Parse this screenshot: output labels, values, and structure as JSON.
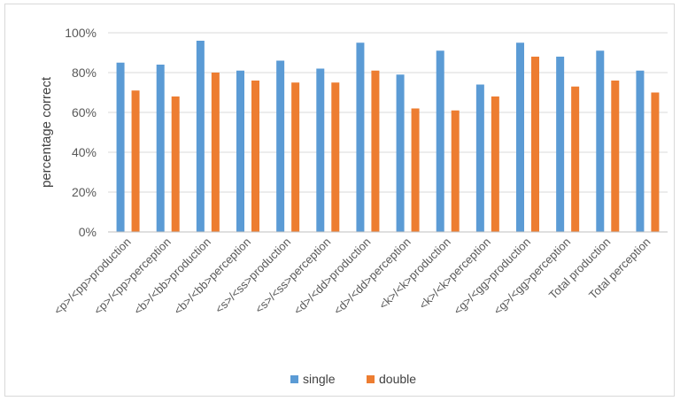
{
  "chart_data": {
    "type": "bar",
    "ylabel": "percentage correct",
    "xlabel": "",
    "ylim": [
      0,
      100
    ],
    "yticks": [
      "0%",
      "20%",
      "40%",
      "60%",
      "80%",
      "100%"
    ],
    "grid": true,
    "legend_position": "bottom",
    "categories": [
      "<p>/<pp>production",
      "<p>/<pp>perception",
      "<b>/<bb>production",
      "<b>/<bb>perception",
      "<s>/<ss>production",
      "<s>/<ss>perception",
      "<d>/<dd>production",
      "<d>/<dd>perception",
      "<k>/<k>production",
      "<k>/<k>perception",
      "<g>/<gg>production",
      "<g>/<gg>perception",
      "Total production",
      "Total perception"
    ],
    "series": [
      {
        "name": "single",
        "color": "#5B9BD5",
        "values": [
          85,
          84,
          96,
          81,
          86,
          82,
          95,
          79,
          91,
          74,
          95,
          88,
          91,
          81
        ]
      },
      {
        "name": "double",
        "color": "#ED7D31",
        "values": [
          71,
          68,
          80,
          76,
          75,
          75,
          81,
          62,
          61,
          68,
          88,
          73,
          76,
          70
        ]
      }
    ]
  }
}
